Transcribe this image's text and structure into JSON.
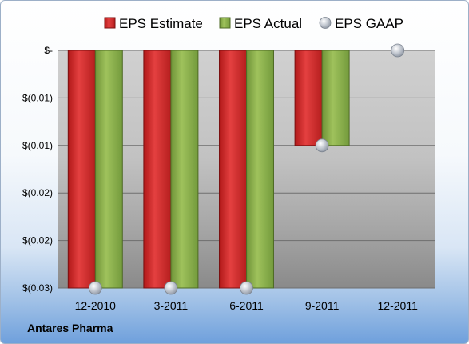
{
  "chart_data": {
    "type": "bar",
    "categories": [
      "12-2010",
      "3-2011",
      "6-2011",
      "9-2011",
      "12-2011"
    ],
    "series": [
      {
        "name": "EPS Estimate",
        "kind": "bar",
        "color": "#d42a2a",
        "values": [
          -0.025,
          -0.025,
          -0.025,
          -0.01,
          null
        ]
      },
      {
        "name": "EPS Actual",
        "kind": "bar",
        "color": "#8cb04b",
        "values": [
          -0.025,
          -0.025,
          -0.025,
          -0.01,
          null
        ]
      },
      {
        "name": "EPS GAAP",
        "kind": "marker",
        "color": "#b8bfc9",
        "values": [
          -0.025,
          -0.025,
          -0.025,
          -0.01,
          0
        ]
      }
    ],
    "yticks": [
      "$-",
      "$(0.01)",
      "$(0.01)",
      "$(0.02)",
      "$(0.02)",
      "$(0.03)"
    ],
    "ytick_values": [
      0,
      -0.005,
      -0.01,
      -0.015,
      -0.02,
      -0.025
    ],
    "ylim": [
      -0.025,
      0
    ],
    "grid": true,
    "legend_position": "top"
  },
  "company": "Antares Pharma"
}
